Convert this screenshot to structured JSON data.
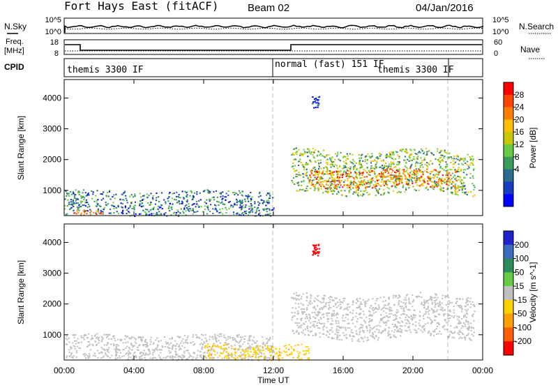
{
  "header": {
    "station": "Fort Hays East (fitACF)",
    "beam": "Beam 02",
    "date": "04/Jan/2016"
  },
  "strip_labels": {
    "nsky": "N.Sky",
    "nsearch": "N.Search",
    "freq_line1": "Freq.",
    "freq_line2": "[MHz]",
    "nave": "Nave",
    "cpid": "CPID",
    "nsky_ticks": [
      "10^5",
      "10^0"
    ],
    "nsearch_ticks": [
      "10^5",
      "10^0"
    ],
    "freq_ticks": [
      "18",
      "8"
    ],
    "nave_ticks": [
      "60",
      "0"
    ]
  },
  "cpid_segments": [
    {
      "label": "themis 3300 IF",
      "start_h": 0.0,
      "end_h": 12.0
    },
    {
      "label": "normal (fast) 151 IF",
      "start_h": 12.0,
      "end_h": 21.8
    },
    {
      "label": "themis 3300 IF",
      "start_h": 21.8,
      "end_h": 24.0
    }
  ],
  "power_colorbar": {
    "label": "Power [dB]",
    "ticks": [
      "28",
      "24",
      "20",
      "16",
      "12",
      "8",
      "4"
    ],
    "colors": [
      "#ff0000",
      "#ff4400",
      "#ff8000",
      "#ffbf00",
      "#c8c800",
      "#66cc44",
      "#3c9c5c",
      "#2c6c8c",
      "#1a3cc0",
      "#0000ff"
    ]
  },
  "velocity_colorbar": {
    "label": "Velocity [m s^-1]",
    "ticks": [
      "200",
      "100",
      "50",
      "15",
      "-15",
      "-50",
      "-100",
      "-200"
    ],
    "colors": [
      "#2222cc",
      "#3c6cc0",
      "#2c8c5c",
      "#66cc44",
      "#c0c0c0",
      "#ffd000",
      "#ffa000",
      "#ff6000",
      "#ff0000"
    ]
  },
  "axes": {
    "ylabel": "Slant Range [km]",
    "yticks": [
      "4000",
      "3000",
      "2000",
      "1000"
    ],
    "xticks": [
      "00:00",
      "04:00",
      "08:00",
      "12:00",
      "16:00",
      "20:00",
      "00:00"
    ],
    "xlabel": "Time UT"
  },
  "chart_data": [
    {
      "type": "heatmap",
      "title": "",
      "panel": "power",
      "xlabel": "Time UT",
      "ylabel": "Slant Range [km]",
      "xlim_hours": [
        0,
        24
      ],
      "ylim_km": [
        180,
        4600
      ],
      "echo_regions": [
        {
          "t0": 0.0,
          "t1": 12.0,
          "r0": 200,
          "r1": 1000,
          "power_db": 10
        },
        {
          "t0": 0.5,
          "t1": 2.2,
          "r0": 200,
          "r1": 350,
          "power_db": 30
        },
        {
          "t0": 13.0,
          "t1": 23.5,
          "r0": 900,
          "r1": 2300,
          "power_db": 16
        },
        {
          "t0": 14.0,
          "t1": 22.5,
          "r0": 1100,
          "r1": 1700,
          "power_db": 26
        },
        {
          "t0": 14.2,
          "t1": 14.6,
          "r0": 3700,
          "r1": 4100,
          "power_db": 8
        }
      ]
    },
    {
      "type": "heatmap",
      "title": "",
      "panel": "velocity",
      "xlabel": "Time UT",
      "ylabel": "Slant Range [km]",
      "xlim_hours": [
        0,
        24
      ],
      "ylim_km": [
        180,
        4600
      ],
      "echo_regions": [
        {
          "t0": 0.0,
          "t1": 12.0,
          "r0": 200,
          "r1": 1000,
          "velocity_ms": 0
        },
        {
          "t0": 8.0,
          "t1": 14.0,
          "r0": 200,
          "r1": 700,
          "velocity_ms": -40
        },
        {
          "t0": 13.0,
          "t1": 23.5,
          "r0": 900,
          "r1": 2300,
          "velocity_ms": 0
        },
        {
          "t0": 14.2,
          "t1": 14.6,
          "r0": 3600,
          "r1": 4000,
          "velocity_ms": -200
        }
      ]
    }
  ]
}
